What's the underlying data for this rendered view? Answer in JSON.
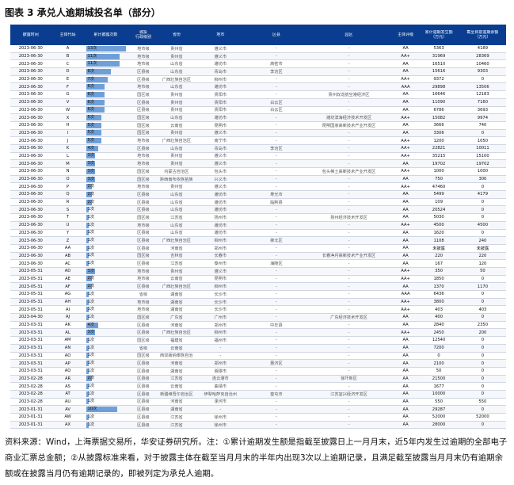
{
  "title": "图表 3 承兑人逾期城投名单（部分）",
  "headers": [
    "披露时间",
    "主体代码",
    "累计披露次数",
    "城投\n行政级别",
    "省份",
    "地市",
    "区县",
    "园区",
    "主体评级",
    "累计逾期发生额\n（万元）",
    "截至目前逾期余额\n（万元）"
  ],
  "rows": [
    [
      "2023-06-30",
      "A",
      "13次",
      "地市级",
      "贵州省",
      "遵义市",
      "-",
      "-",
      "AA",
      "5363",
      "4189"
    ],
    [
      "2023-06-30",
      "B",
      "11次",
      "地市级",
      "贵州省",
      "遵义市",
      "-",
      "-",
      "AA+",
      "31969",
      "28369"
    ],
    [
      "2023-06-30",
      "C",
      "11次",
      "地市级",
      "山东省",
      "潍坊市",
      "高密市",
      "-",
      "AA",
      "16510",
      "10460"
    ],
    [
      "2023-06-30",
      "D",
      "8次",
      "区县级",
      "山东省",
      "青岛市",
      "李沧区",
      "-",
      "AA",
      "15616",
      "9303"
    ],
    [
      "2023-06-30",
      "E",
      "7次",
      "区县级",
      "广西壮族自治区",
      "柳州市",
      "-",
      "-",
      "AA+",
      "9372",
      "0"
    ],
    [
      "2023-06-30",
      "F",
      "6次",
      "地市级",
      "山东省",
      "潍坊市",
      "-",
      "-",
      "AAA",
      "29898",
      "13506"
    ],
    [
      "2023-06-30",
      "G",
      "6次",
      "园区级",
      "贵州省",
      "贵阳市",
      "-",
      "贵州双龙航空港经济区",
      "AA",
      "16646",
      "12183"
    ],
    [
      "2023-06-30",
      "V",
      "6次",
      "区县级",
      "贵州省",
      "贵阳市",
      "白云区",
      "-",
      "AA",
      "11090",
      "7160"
    ],
    [
      "2023-06-30",
      "W",
      "6次",
      "区县级",
      "贵州省",
      "贵阳市",
      "白云区",
      "-",
      "AA",
      "6786",
      "3693"
    ],
    [
      "2023-06-30",
      "X",
      "5次",
      "园区级",
      "山东省",
      "潍坊市",
      "-",
      "潍坊滨海经济技术开发区",
      "AA+",
      "15082",
      "9974"
    ],
    [
      "2023-06-30",
      "H",
      "5次",
      "园区级",
      "云南省",
      "昆明市",
      "-",
      "昆明国家高新技术产业开发区",
      "AA",
      "3666",
      "740"
    ],
    [
      "2023-06-30",
      "I",
      "5次",
      "园区级",
      "贵州省",
      "遵义市",
      "-",
      "-",
      "AA",
      "3306",
      "0"
    ],
    [
      "2023-06-30",
      "J",
      "5次",
      "地市级",
      "广西壮族自治区",
      "南宁市",
      "-",
      "-",
      "AA+",
      "1200",
      "1050"
    ],
    [
      "2023-06-30",
      "K",
      "4次",
      "区县级",
      "山东省",
      "青岛市",
      "李沧区",
      "-",
      "AA+",
      "22821",
      "10011"
    ],
    [
      "2023-06-30",
      "L",
      "3次",
      "地市级",
      "贵州省",
      "遵义市",
      "-",
      "-",
      "AA+",
      "35215",
      "15100"
    ],
    [
      "2023-06-30",
      "M",
      "3次",
      "地市级",
      "贵州省",
      "遵义市",
      "-",
      "-",
      "AA",
      "19702",
      "19702"
    ],
    [
      "2023-06-30",
      "N",
      "3次",
      "园区级",
      "内蒙古自治区",
      "包头市",
      "-",
      "包头稀土高新技术产业开发区",
      "AA+",
      "1000",
      "1000"
    ],
    [
      "2023-06-30",
      "O",
      "3次",
      "园区级",
      "黔西南布依族苗族自治州",
      "兴义市",
      "-",
      "-",
      "AA",
      "750",
      "300"
    ],
    [
      "2023-06-30",
      "P",
      "2次",
      "地市级",
      "贵州省",
      "遵义市",
      "-",
      "-",
      "AA+",
      "47460",
      "0"
    ],
    [
      "2023-06-30",
      "Q",
      "2次",
      "区县级",
      "山东省",
      "潍坊市",
      "寿光市",
      "-",
      "AA",
      "5499",
      "4179"
    ],
    [
      "2023-06-30",
      "R",
      "2次",
      "区县级",
      "山东省",
      "潍坊市",
      "临朐县",
      "-",
      "AA",
      "109",
      "0"
    ],
    [
      "2023-06-30",
      "S",
      "1次",
      "区县级",
      "山东省",
      "潍坊市",
      "-",
      "-",
      "AA",
      "20524",
      "0"
    ],
    [
      "2023-06-30",
      "T",
      "1次",
      "园区级",
      "江苏省",
      "扬州市",
      "-",
      "扬州经济技术开发区",
      "AA",
      "5030",
      "0"
    ],
    [
      "2023-06-30",
      "U",
      "1次",
      "地市级",
      "山东省",
      "潍坊市",
      "-",
      "-",
      "AA+",
      "4500",
      "4500"
    ],
    [
      "2023-06-30",
      "Y",
      "1次",
      "区县级",
      "山东省",
      "潍坊市",
      "-",
      "-",
      "AA",
      "1620",
      "0"
    ],
    [
      "2023-06-30",
      "Z",
      "1次",
      "区县级",
      "广西壮族自治区",
      "柳州市",
      "柳北区",
      "-",
      "AA",
      "1108",
      "240"
    ],
    [
      "2023-06-30",
      "AA",
      "1次",
      "区县级",
      "河南省",
      "郑州市",
      "-",
      "-",
      "AA",
      "未披露",
      "未披露"
    ],
    [
      "2023-06-30",
      "AB",
      "1次",
      "园区级",
      "吉林省",
      "长春市",
      "-",
      "长春净月高新技术产业开发区",
      "AA",
      "220",
      "220"
    ],
    [
      "2023-06-30",
      "AC",
      "1次",
      "区县级",
      "江苏省",
      "泰州市",
      "海陵区",
      "-",
      "AA",
      "167",
      "120"
    ],
    [
      "2023-05-31",
      "AD",
      "3次",
      "地市级",
      "贵州省",
      "遵义市",
      "-",
      "-",
      "AA+",
      "350",
      "50"
    ],
    [
      "2023-05-31",
      "AE",
      "2次",
      "地市级",
      "云南省",
      "昆明市",
      "-",
      "-",
      "AA+",
      "1850",
      "0"
    ],
    [
      "2023-05-31",
      "AF",
      "2次",
      "区县级",
      "广西壮族自治区",
      "柳州市",
      "-",
      "-",
      "AA",
      "1370",
      "1170"
    ],
    [
      "2023-05-31",
      "AG",
      "1次",
      "省级",
      "湖南省",
      "长沙市",
      "-",
      "-",
      "AAA",
      "6436",
      "0"
    ],
    [
      "2023-05-31",
      "AH",
      "1次",
      "地市级",
      "湖南省",
      "长沙市",
      "-",
      "-",
      "AA+",
      "3800",
      "0"
    ],
    [
      "2023-05-31",
      "AI",
      "1次",
      "地市级",
      "湖南省",
      "长沙市",
      "-",
      "-",
      "AA+",
      "403",
      "403"
    ],
    [
      "2023-04-30",
      "AJ",
      "1次",
      "园区级",
      "广东省",
      "广州市",
      "-",
      "广东经济技术开发区",
      "AA",
      "400",
      "0"
    ],
    [
      "2023-03-31",
      "AK",
      "4次",
      "区县级",
      "河南省",
      "郑州市",
      "中牟县",
      "-",
      "AA",
      "2840",
      "2350"
    ],
    [
      "2023-03-31",
      "AL",
      "3次",
      "区县级",
      "广西壮族自治区",
      "柳州市",
      "-",
      "-",
      "AA+",
      "2450",
      "200"
    ],
    [
      "2023-03-31",
      "AM",
      "1次",
      "园区级",
      "福建省",
      "福州市",
      "-",
      "-",
      "AA",
      "12540",
      "0"
    ],
    [
      "2023-03-31",
      "AN",
      "1次",
      "省级",
      "云南省",
      "-",
      "-",
      "-",
      "AA",
      "7200",
      "0"
    ],
    [
      "2023-03-31",
      "AO",
      "1次",
      "园区级",
      "西双版纳傣族自治州",
      "-",
      "-",
      "-",
      "AA",
      "0",
      "0"
    ],
    [
      "2023-03-31",
      "AP",
      "1次",
      "区县级",
      "河南省",
      "郑州市",
      "惠济区",
      "-",
      "AA",
      "2100",
      "0"
    ],
    [
      "2023-03-31",
      "AQ",
      "1次",
      "区县级",
      "湖南省",
      "湘潭市",
      "-",
      "-",
      "AA",
      "50",
      "0"
    ],
    [
      "2023-02-28",
      "AR",
      "2次",
      "区县级",
      "江苏省",
      "连云港市",
      "-",
      "徐圩新区",
      "AA",
      "21500",
      "0"
    ],
    [
      "2023-02-28",
      "AS",
      "1次",
      "区县级",
      "云南省",
      "曲靖市",
      "-",
      "-",
      "AA",
      "1677",
      "0"
    ],
    [
      "2023-02-28",
      "AT",
      "1次",
      "区县级",
      "新疆维吾尔自治区",
      "伊犁哈萨克自治州",
      "奎屯市",
      "江苏宜兴经济开发区",
      "AA",
      "10000",
      "0"
    ],
    [
      "2023-02-28",
      "AU",
      "1次",
      "区县级",
      "河南省",
      "漯河市",
      "-",
      "-",
      "AA",
      "550",
      "550"
    ],
    [
      "2023-01-31",
      "AV",
      "10次",
      "区县级",
      "湖南省",
      "-",
      "-",
      "-",
      "AA",
      "29287",
      "0"
    ],
    [
      "2023-01-31",
      "AW",
      "1次",
      "区县级",
      "江苏省",
      "徐州市",
      "-",
      "-",
      "AA",
      "52000",
      "52000"
    ],
    [
      "2023-01-31",
      "AX",
      "1次",
      "区县级",
      "江苏省",
      "徐州市",
      "-",
      "-",
      "AA",
      "28000",
      "0"
    ]
  ],
  "note": "资料来源：Wind，上海票据交易所，华安证券研究所。注：①累计逾期发生额是指截至披露日上一月月末，近5年内发生过逾期的全部电子商业汇票总金额；②从披露标准来看，对于披露主体在截至当月月末的半年内出现3次以上逾期记录，且满足截至披露当月月末仍有逾期余额或在披露当月仍有逾期记录的，即被列定为承兑人逾期。"
}
